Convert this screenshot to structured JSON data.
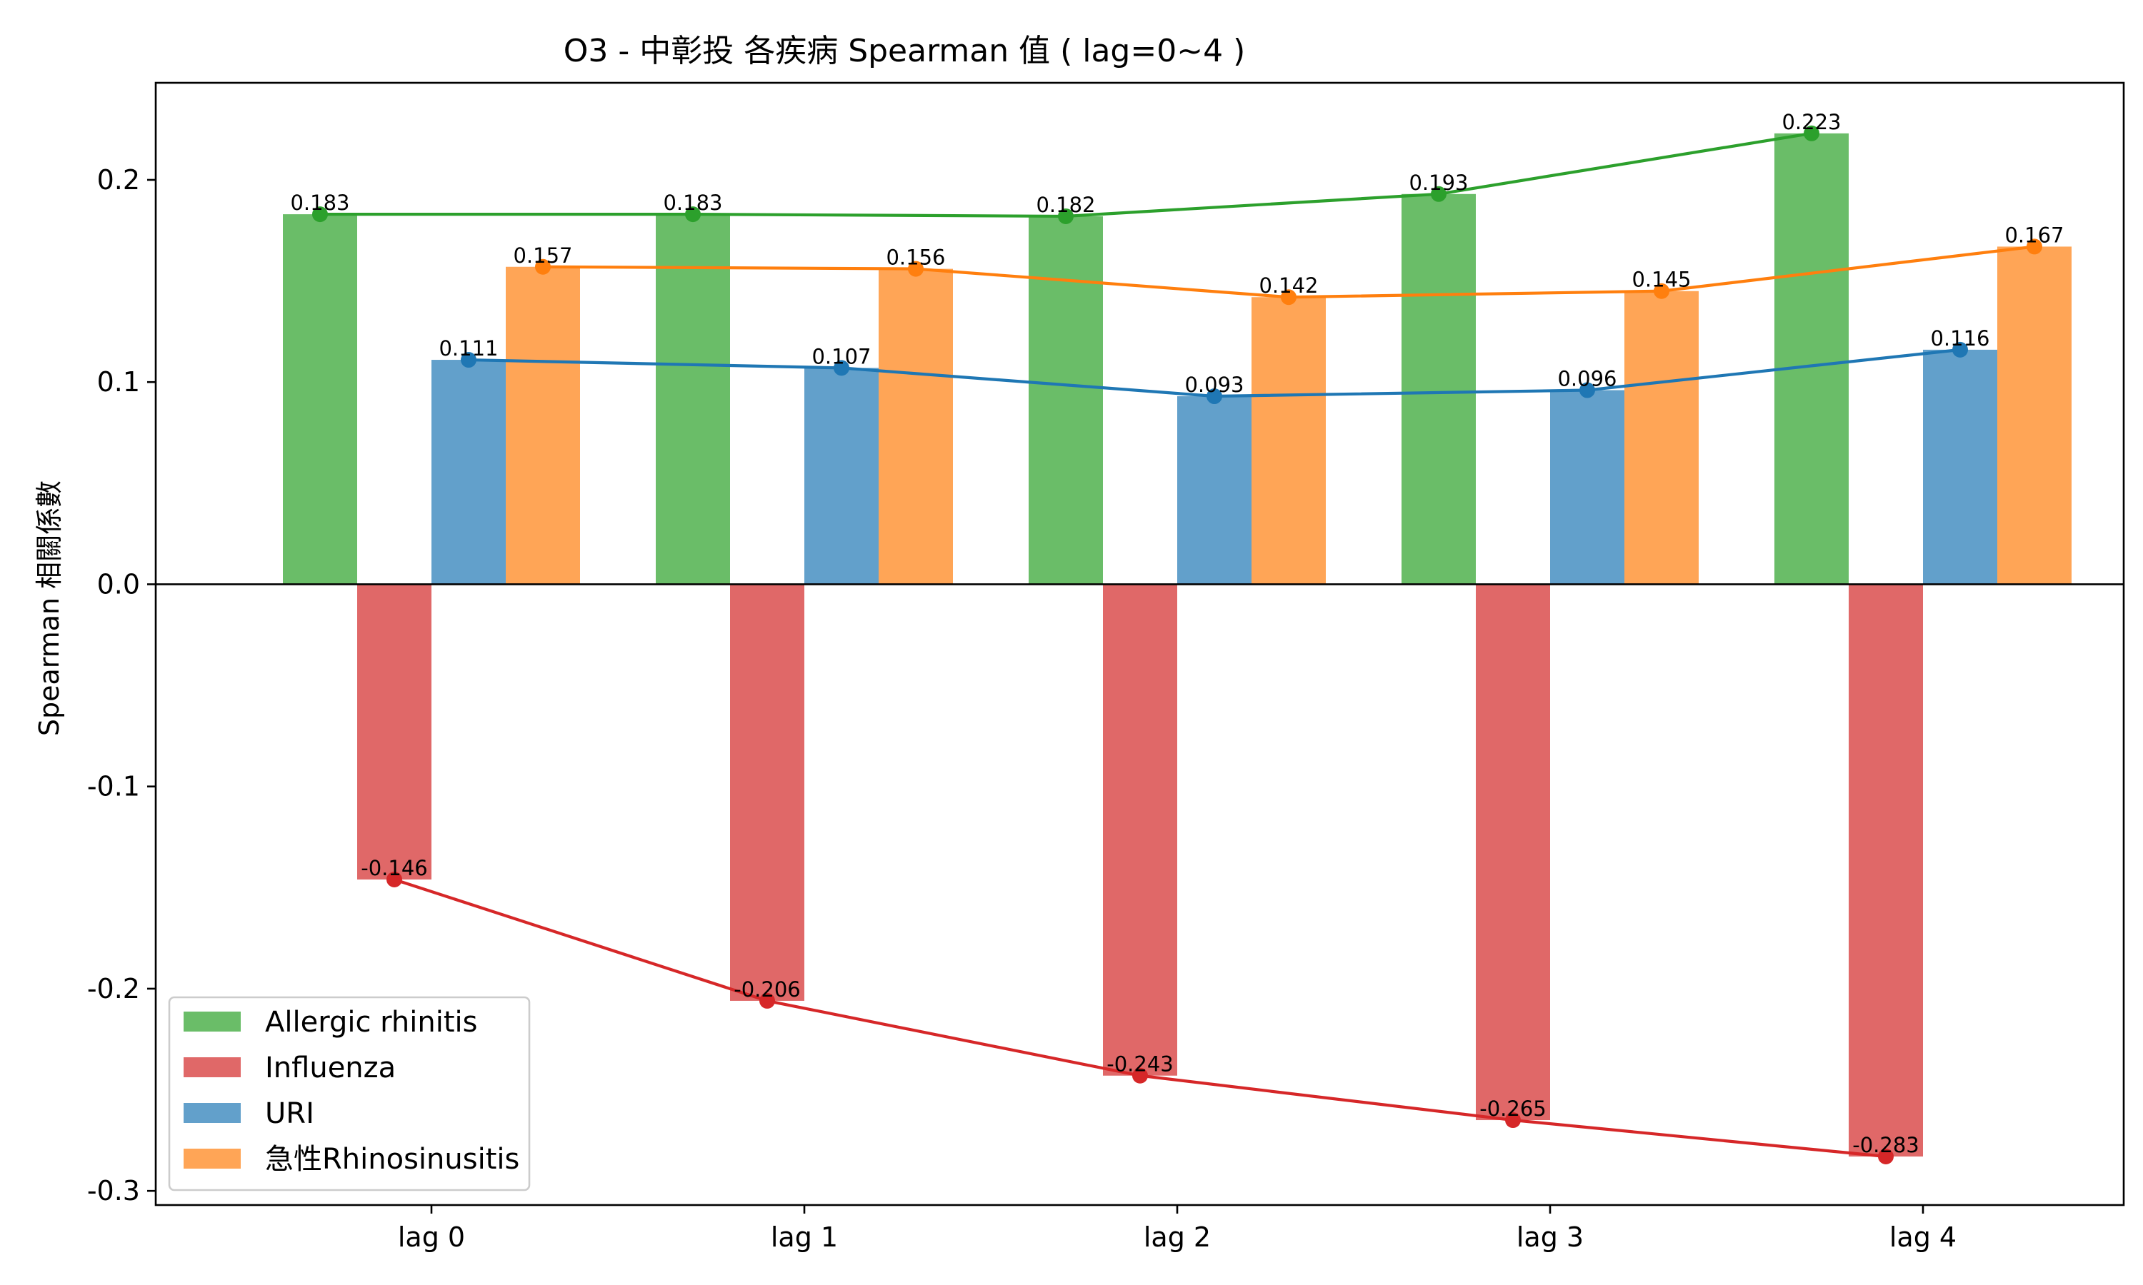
{
  "chart_data": {
    "type": "bar",
    "title": "O3 - 中彰投 各疾病 Spearman 值 ( lag=0~4 )",
    "xlabel": "",
    "ylabel": "Spearman 相關係數",
    "categories": [
      "lag 0",
      "lag 1",
      "lag 2",
      "lag 3",
      "lag 4"
    ],
    "ylim": [
      -0.307,
      0.248
    ],
    "yticks": [
      0.2,
      0.1,
      0.0,
      -0.1,
      -0.2,
      -0.3
    ],
    "ytick_labels": [
      "0.2",
      "0.1",
      "0.0",
      "-0.1",
      "-0.2",
      "-0.3"
    ],
    "grid": false,
    "zero_line": true,
    "legend_position": "lower-left",
    "overlay": "line with markers through bar values, each series",
    "series": [
      {
        "name": "Allergic rhinitis",
        "values": [
          0.183,
          0.183,
          0.182,
          0.193,
          0.223
        ],
        "labels": [
          "0.183",
          "0.183",
          "0.182",
          "0.193",
          "0.223"
        ],
        "bar_color": "#6abd68",
        "line_color": "#2ca02c"
      },
      {
        "name": "Influenza",
        "values": [
          -0.146,
          -0.206,
          -0.243,
          -0.265,
          -0.283
        ],
        "labels": [
          "-0.146",
          "-0.206",
          "-0.243",
          "-0.265",
          "-0.283"
        ],
        "bar_color": "#e06868",
        "line_color": "#d62728"
      },
      {
        "name": "URI",
        "values": [
          0.111,
          0.107,
          0.093,
          0.096,
          0.116
        ],
        "labels": [
          "0.111",
          "0.107",
          "0.093",
          "0.096",
          "0.116"
        ],
        "bar_color": "#62a0cb",
        "line_color": "#1f77b4"
      },
      {
        "name": "急性Rhinosinusitis",
        "values": [
          0.157,
          0.156,
          0.142,
          0.145,
          0.167
        ],
        "labels": [
          "0.157",
          "0.156",
          "0.142",
          "0.145",
          "0.167"
        ],
        "bar_color": "#ffa556",
        "line_color": "#ff7f0e"
      }
    ]
  }
}
